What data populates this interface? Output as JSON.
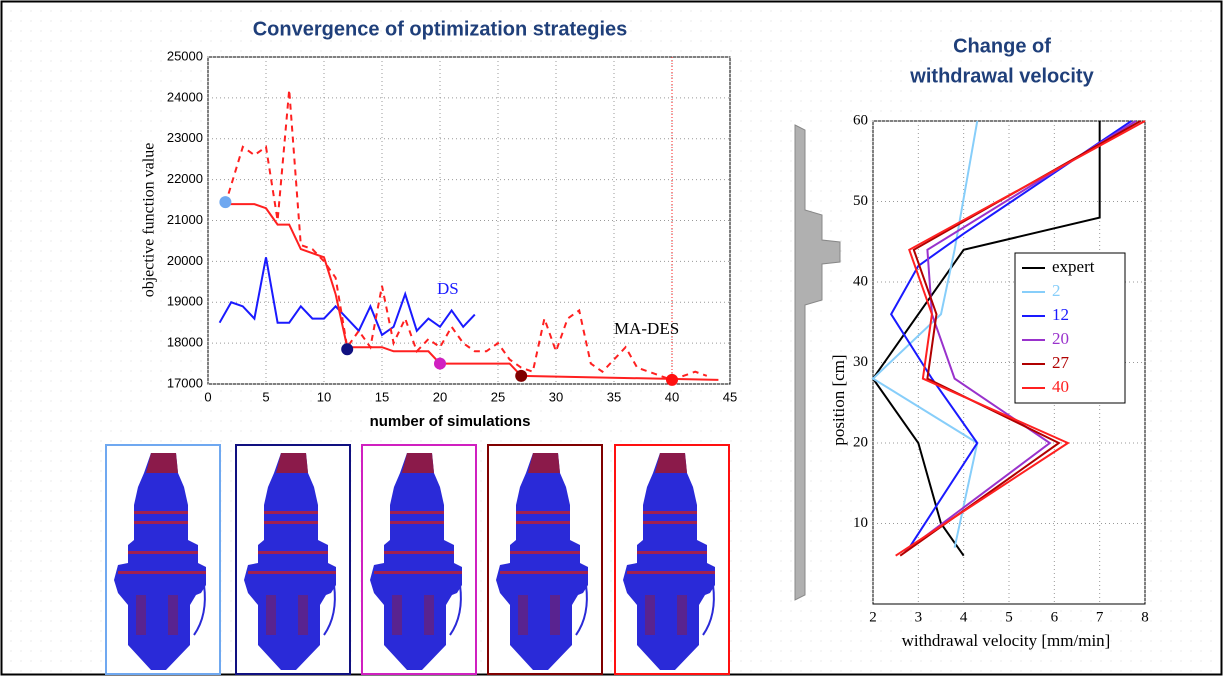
{
  "chart_data": [
    {
      "type": "line",
      "title": "Convergence of optimization strategies",
      "x_label": "number of simulations",
      "y_label": "objective function value",
      "xlim": [
        0,
        45
      ],
      "xticks": [
        0,
        5,
        10,
        15,
        20,
        25,
        30,
        35,
        40,
        45
      ],
      "ylim": [
        17000,
        25000
      ],
      "yticks": [
        17000,
        18000,
        19000,
        20000,
        21000,
        22000,
        23000,
        24000,
        25000
      ],
      "grid": true,
      "series": [
        {
          "name": "DS",
          "color": "#1a1aff",
          "dash": false,
          "x": [
            1,
            2,
            3,
            4,
            5,
            6,
            7,
            8,
            9,
            10,
            11,
            12,
            13,
            14,
            15,
            16,
            17,
            18,
            19,
            20,
            21,
            22,
            23
          ],
          "values": [
            18500,
            19000,
            18900,
            18600,
            20100,
            18500,
            18500,
            18900,
            18600,
            18600,
            18900,
            18600,
            18300,
            18900,
            18200,
            18400,
            19200,
            18300,
            18600,
            18400,
            18800,
            18400,
            18700
          ]
        },
        {
          "name": "MA-DES",
          "color": "#ff2020",
          "dash": false,
          "x": [
            1.5,
            4,
            5,
            6,
            7,
            8,
            10,
            11,
            12,
            15,
            16,
            19,
            20,
            26,
            27,
            44
          ],
          "values": [
            21400,
            21400,
            21300,
            20900,
            20900,
            20300,
            20100,
            19200,
            17900,
            17900,
            17800,
            17800,
            17500,
            17500,
            17200,
            17100
          ]
        },
        {
          "color": "#ff2020",
          "dash": true,
          "x": [
            1.5,
            3,
            4,
            5,
            6,
            7,
            8,
            9,
            10,
            11,
            12,
            13,
            14,
            15,
            16,
            17,
            18,
            19,
            20,
            21,
            22,
            23,
            24,
            25,
            26,
            27,
            28,
            29,
            30,
            31,
            32,
            33,
            34,
            35,
            36,
            37,
            38,
            39,
            40,
            41,
            42,
            43
          ],
          "values": [
            21400,
            22800,
            22600,
            22800,
            21000,
            24200,
            20400,
            20300,
            20000,
            19600,
            17900,
            18300,
            17900,
            19400,
            18000,
            18600,
            17800,
            18100,
            17900,
            18400,
            18000,
            17800,
            17800,
            18000,
            17600,
            17400,
            17300,
            18600,
            17800,
            18600,
            18800,
            17500,
            17300,
            17600,
            17900,
            17400,
            17300,
            17200,
            17100,
            17200,
            17300,
            17200
          ]
        }
      ],
      "points": {
        "x": [
          1.5,
          12,
          20,
          27,
          40
        ],
        "values": [
          21450,
          17850,
          17500,
          17200,
          17100
        ],
        "colors": [
          "#6fa8f0",
          "#101080",
          "#d020c0",
          "#800000",
          "#ff1010"
        ]
      },
      "vline_x": 40
    },
    {
      "type": "line",
      "title_lines": [
        "Change of",
        "withdrawal velocity"
      ],
      "x_label": "withdrawal velocity [mm/min]",
      "y_label": "position [cm]",
      "xlim": [
        2,
        8
      ],
      "xticks": [
        2,
        3,
        4,
        5,
        6,
        7,
        8
      ],
      "ylim": [
        0,
        60
      ],
      "yticks": [
        10,
        20,
        30,
        40,
        50,
        60
      ],
      "grid": true,
      "legend": "upper-right",
      "series": [
        {
          "name": "expert",
          "color": "#000000",
          "x": [
            4,
            3.5,
            3,
            2,
            3,
            4,
            7,
            7
          ],
          "values": [
            6,
            10,
            20,
            28,
            36,
            44,
            48,
            60
          ]
        },
        {
          "name": "2",
          "color": "#87cefa",
          "x": [
            3.8,
            4.3,
            2,
            3.5,
            3.8,
            4.3
          ],
          "values": [
            7,
            20,
            28,
            36,
            44,
            60
          ]
        },
        {
          "name": "12",
          "color": "#1a1aff",
          "x": [
            2.8,
            4.3,
            3.3,
            2.4,
            3,
            4,
            7.7
          ],
          "values": [
            7,
            20,
            28,
            36,
            42,
            46,
            60
          ]
        },
        {
          "name": "20",
          "color": "#9932cc",
          "x": [
            2.7,
            5.9,
            3.8,
            3.3,
            3.2,
            7.8
          ],
          "values": [
            6.5,
            20,
            28,
            36,
            44,
            60
          ]
        },
        {
          "name": "27",
          "color": "#b00000",
          "x": [
            2.6,
            6.1,
            3.2,
            3.4,
            2.9,
            7.9
          ],
          "values": [
            6,
            20,
            28,
            36,
            44,
            60
          ]
        },
        {
          "name": "40",
          "color": "#ff2020",
          "x": [
            2.5,
            6.3,
            3.1,
            3.3,
            2.8,
            8
          ],
          "values": [
            6,
            20,
            28,
            36,
            44,
            60
          ]
        }
      ]
    }
  ]
}
